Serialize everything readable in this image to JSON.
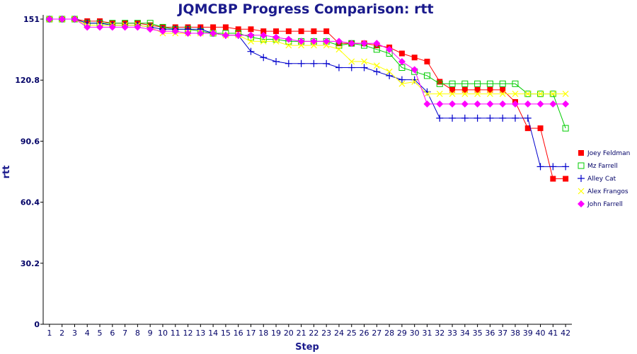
{
  "chart_data": {
    "type": "line",
    "title": "JQMCBP Progress Comparison: rtt",
    "xlabel": "Step",
    "ylabel": "rtt",
    "x": [
      1,
      2,
      3,
      4,
      5,
      6,
      7,
      8,
      9,
      10,
      11,
      12,
      13,
      14,
      15,
      16,
      17,
      18,
      19,
      20,
      21,
      22,
      23,
      24,
      25,
      26,
      27,
      28,
      29,
      30,
      31,
      32,
      33,
      34,
      35,
      36,
      37,
      38,
      39,
      40,
      41,
      42
    ],
    "xlim": [
      0.5,
      42.5
    ],
    "ylim": [
      0,
      151
    ],
    "yticks": [
      "0",
      "30.2",
      "60.4",
      "90.6",
      "120.8",
      "151"
    ],
    "grid": false,
    "legend_position": "right",
    "series": [
      {
        "name": "Joey Feldman",
        "color": "#ff0000",
        "marker": "square-filled",
        "values": [
          151,
          151,
          151,
          150,
          150,
          149,
          149,
          149,
          148,
          147,
          147,
          147,
          147,
          147,
          147,
          146,
          146,
          145,
          145,
          145,
          145,
          145,
          145,
          139,
          139,
          139,
          138,
          137,
          134,
          132,
          130,
          120,
          116,
          116,
          116,
          116,
          116,
          110,
          97,
          97,
          72,
          72
        ]
      },
      {
        "name": "Mz Farrell",
        "color": "#00cc00",
        "marker": "square-open",
        "values": [
          151,
          151,
          151,
          149,
          149,
          149,
          149,
          149,
          149,
          147,
          146,
          146,
          145,
          144,
          144,
          144,
          142,
          141,
          141,
          140,
          140,
          140,
          140,
          138,
          139,
          138,
          136,
          134,
          127,
          125,
          123,
          119,
          119,
          119,
          119,
          119,
          119,
          119,
          114,
          114,
          114,
          97
        ]
      },
      {
        "name": "Alley Cat",
        "color": "#0000cc",
        "marker": "plus",
        "values": [
          151,
          151,
          151,
          149,
          149,
          148,
          148,
          148,
          147,
          146,
          146,
          146,
          146,
          144,
          143,
          143,
          135,
          132,
          130,
          129,
          129,
          129,
          129,
          127,
          127,
          127,
          125,
          123,
          121,
          121,
          115,
          102,
          102,
          102,
          102,
          102,
          102,
          102,
          102,
          78,
          78,
          78
        ]
      },
      {
        "name": "Alex Frangos",
        "color": "#ffff00",
        "marker": "x",
        "values": [
          151,
          151,
          151,
          148,
          148,
          148,
          148,
          148,
          147,
          144,
          144,
          144,
          144,
          144,
          143,
          143,
          140,
          140,
          140,
          138,
          138,
          138,
          138,
          136,
          130,
          130,
          128,
          125,
          119,
          120,
          114,
          114,
          114,
          114,
          114,
          114,
          114,
          114,
          114,
          114,
          114,
          114
        ]
      },
      {
        "name": "John Farrell",
        "color": "#ff00ff",
        "marker": "diamond-filled",
        "values": [
          151,
          151,
          151,
          147,
          147,
          147,
          147,
          147,
          146,
          145,
          145,
          144,
          144,
          144,
          143,
          143,
          143,
          143,
          142,
          141,
          140,
          140,
          140,
          140,
          139,
          139,
          139,
          136,
          130,
          126,
          109,
          109,
          109,
          109,
          109,
          109,
          109,
          109,
          109,
          109,
          109,
          109
        ]
      }
    ]
  }
}
